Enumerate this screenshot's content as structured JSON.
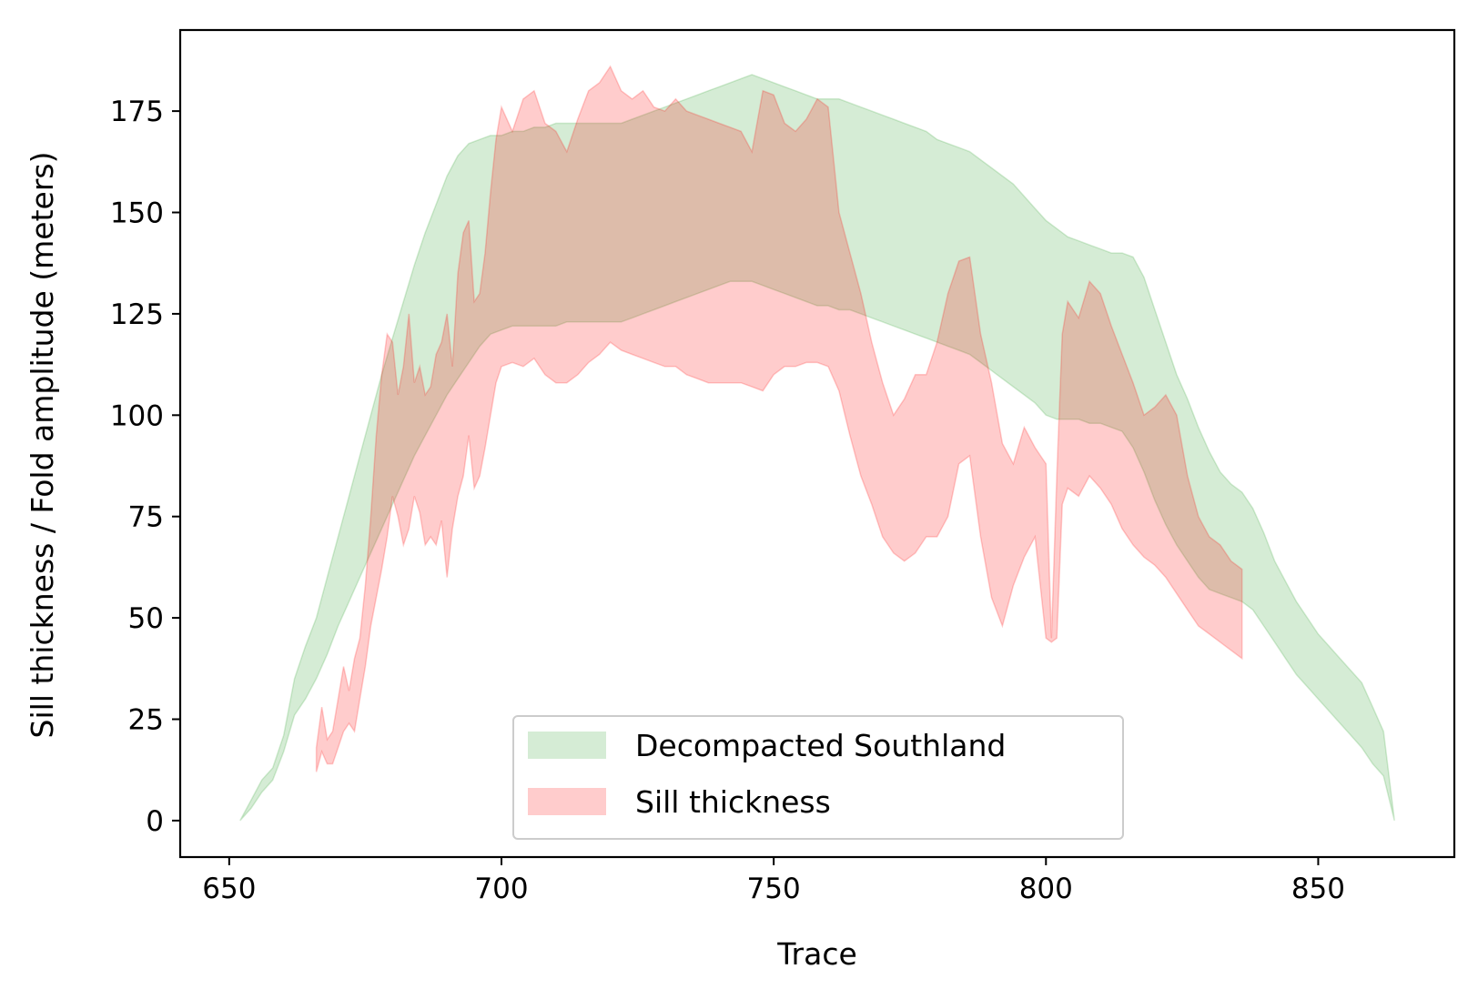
{
  "chart_data": {
    "type": "area",
    "xlabel": "Trace",
    "ylabel": "Sill thickness / Fold amplitude (meters)",
    "xlim": [
      641,
      875
    ],
    "ylim": [
      -9,
      195
    ],
    "xticks": [
      650,
      700,
      750,
      800,
      850
    ],
    "yticks": [
      0,
      25,
      50,
      75,
      100,
      125,
      150,
      175
    ],
    "legend_position": "lower center",
    "series": [
      {
        "name": "Decompacted Southland",
        "color": "#2ca02c",
        "x": [
          652,
          654,
          656,
          658,
          660,
          662,
          664,
          666,
          668,
          670,
          672,
          674,
          676,
          678,
          680,
          682,
          684,
          686,
          688,
          690,
          692,
          694,
          696,
          698,
          700,
          702,
          704,
          706,
          708,
          710,
          712,
          714,
          716,
          718,
          720,
          722,
          724,
          726,
          728,
          730,
          732,
          734,
          736,
          738,
          740,
          742,
          744,
          746,
          748,
          750,
          752,
          754,
          756,
          758,
          760,
          762,
          764,
          766,
          768,
          770,
          772,
          774,
          776,
          778,
          780,
          782,
          784,
          786,
          788,
          790,
          792,
          794,
          796,
          798,
          800,
          802,
          804,
          806,
          808,
          810,
          812,
          814,
          816,
          818,
          820,
          822,
          824,
          826,
          828,
          830,
          832,
          834,
          836,
          838,
          840,
          842,
          844,
          846,
          848,
          850,
          852,
          854,
          856,
          858,
          860,
          862,
          864
        ],
        "upper": [
          0,
          5,
          10,
          13,
          21,
          35,
          43,
          50,
          60,
          70,
          80,
          90,
          100,
          110,
          119,
          128,
          137,
          145,
          152,
          159,
          164,
          167,
          168,
          169,
          169,
          170,
          170,
          171,
          171,
          172,
          172,
          172,
          172,
          172,
          172,
          172,
          173,
          174,
          175,
          176,
          177,
          178,
          179,
          180,
          181,
          182,
          183,
          184,
          183,
          182,
          181,
          180,
          179,
          178,
          178,
          178,
          177,
          176,
          175,
          174,
          173,
          172,
          171,
          170,
          168,
          167,
          166,
          165,
          163,
          161,
          159,
          157,
          154,
          151,
          148,
          146,
          144,
          143,
          142,
          141,
          140,
          140,
          139,
          134,
          126,
          118,
          110,
          104,
          97,
          91,
          86,
          83,
          81,
          77,
          71,
          64,
          59,
          54,
          50,
          46,
          43,
          40,
          37,
          34,
          28,
          22,
          0
        ],
        "lower": [
          0,
          3,
          7,
          10,
          17,
          26,
          30,
          35,
          41,
          48,
          54,
          60,
          66,
          72,
          78,
          84,
          90,
          95,
          100,
          105,
          109,
          113,
          117,
          120,
          121,
          122,
          122,
          122,
          122,
          122,
          123,
          123,
          123,
          123,
          123,
          123,
          124,
          125,
          126,
          127,
          128,
          129,
          130,
          131,
          132,
          133,
          133,
          133,
          132,
          131,
          130,
          129,
          128,
          127,
          127,
          126,
          126,
          125,
          124,
          123,
          122,
          121,
          120,
          119,
          118,
          117,
          116,
          115,
          113,
          111,
          109,
          107,
          105,
          103,
          100,
          99,
          99,
          99,
          98,
          98,
          97,
          96,
          92,
          86,
          79,
          73,
          68,
          64,
          60,
          57,
          56,
          55,
          54,
          52,
          48,
          44,
          40,
          36,
          33,
          30,
          27,
          24,
          21,
          18,
          14,
          11,
          0
        ]
      },
      {
        "name": "Sill thickness",
        "color": "#ff0000",
        "x": [
          666,
          667,
          668,
          669,
          670,
          671,
          672,
          673,
          674,
          675,
          676,
          677,
          678,
          679,
          680,
          681,
          682,
          683,
          684,
          685,
          686,
          687,
          688,
          689,
          690,
          691,
          692,
          693,
          694,
          695,
          696,
          697,
          698,
          699,
          700,
          702,
          704,
          706,
          708,
          710,
          712,
          714,
          716,
          718,
          720,
          722,
          724,
          726,
          728,
          730,
          732,
          734,
          736,
          738,
          740,
          742,
          744,
          746,
          748,
          750,
          752,
          754,
          756,
          758,
          760,
          762,
          764,
          766,
          768,
          770,
          772,
          774,
          776,
          778,
          780,
          782,
          784,
          786,
          788,
          790,
          792,
          794,
          796,
          798,
          800,
          801,
          802,
          803,
          804,
          806,
          808,
          810,
          812,
          814,
          816,
          818,
          820,
          822,
          824,
          826,
          828,
          830,
          832,
          834,
          836
        ],
        "upper": [
          18,
          28,
          20,
          22,
          30,
          38,
          32,
          40,
          45,
          58,
          75,
          95,
          110,
          120,
          118,
          105,
          112,
          125,
          108,
          112,
          105,
          107,
          115,
          118,
          125,
          112,
          135,
          145,
          148,
          128,
          130,
          140,
          155,
          168,
          176,
          170,
          178,
          180,
          172,
          170,
          165,
          173,
          180,
          182,
          186,
          180,
          178,
          180,
          176,
          175,
          178,
          175,
          174,
          173,
          172,
          171,
          170,
          165,
          180,
          179,
          172,
          170,
          173,
          178,
          176,
          150,
          140,
          130,
          118,
          108,
          100,
          104,
          110,
          110,
          118,
          130,
          138,
          139,
          120,
          108,
          93,
          88,
          97,
          92,
          88,
          45,
          85,
          120,
          128,
          124,
          133,
          130,
          122,
          115,
          108,
          100,
          102,
          105,
          100,
          85,
          75,
          70,
          68,
          64,
          62
        ],
        "lower": [
          12,
          17,
          14,
          14,
          18,
          22,
          24,
          22,
          30,
          38,
          48,
          55,
          62,
          70,
          80,
          75,
          68,
          72,
          80,
          76,
          68,
          70,
          68,
          74,
          60,
          72,
          80,
          85,
          95,
          82,
          85,
          92,
          100,
          108,
          112,
          113,
          112,
          114,
          110,
          108,
          108,
          110,
          113,
          115,
          118,
          116,
          115,
          114,
          113,
          112,
          112,
          110,
          109,
          108,
          108,
          108,
          108,
          107,
          106,
          110,
          112,
          112,
          113,
          113,
          112,
          106,
          95,
          85,
          78,
          70,
          66,
          64,
          66,
          70,
          70,
          75,
          88,
          90,
          70,
          55,
          48,
          58,
          65,
          70,
          45,
          44,
          45,
          78,
          82,
          80,
          85,
          82,
          78,
          72,
          68,
          65,
          63,
          60,
          56,
          52,
          48,
          46,
          44,
          42,
          40
        ]
      }
    ]
  }
}
